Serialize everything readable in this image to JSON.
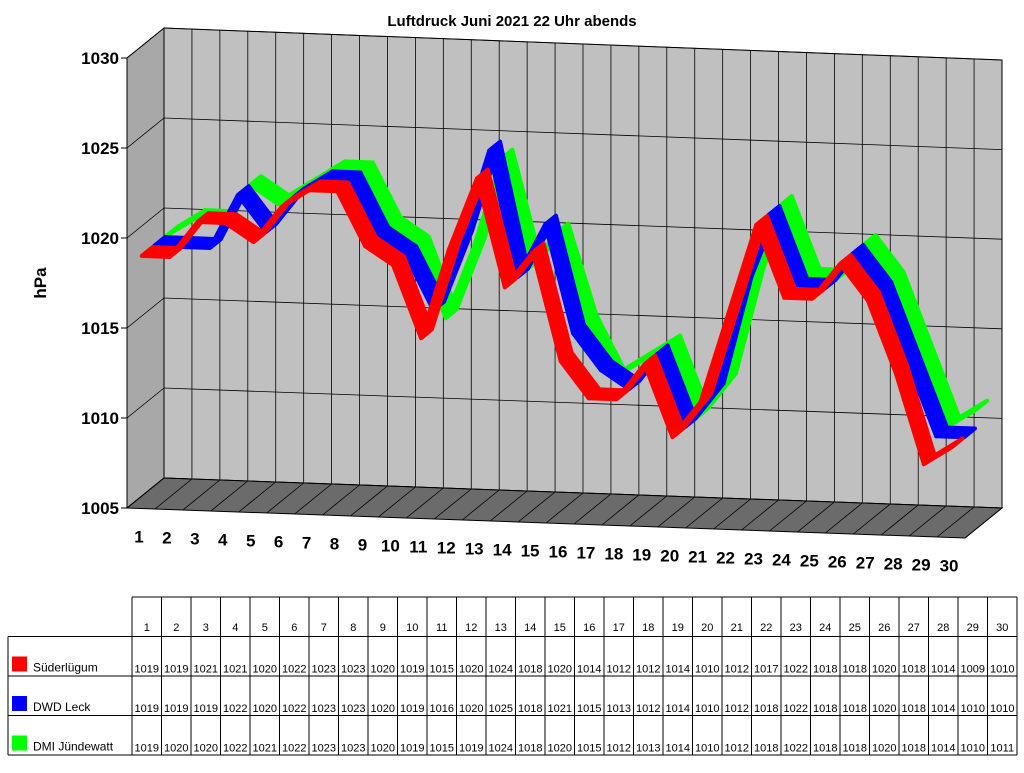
{
  "chart_data": {
    "type": "line",
    "title": "Luftdruck Juni 2021 22 Uhr abends",
    "ylabel": "hPa",
    "xlabel": "",
    "ylim": [
      1005,
      1030
    ],
    "yticks": [
      "1005",
      "1010",
      "1015",
      "1020",
      "1025",
      "1030"
    ],
    "categories": [
      "1",
      "2",
      "3",
      "4",
      "5",
      "6",
      "7",
      "8",
      "9",
      "10",
      "11",
      "12",
      "13",
      "14",
      "15",
      "16",
      "17",
      "18",
      "19",
      "20",
      "21",
      "22",
      "23",
      "24",
      "25",
      "26",
      "27",
      "28",
      "29",
      "30"
    ],
    "grid": true,
    "three_d": true,
    "series": [
      {
        "name": "Süderlügum",
        "color": "#ff0000",
        "values": [
          1019,
          1019,
          1021,
          1021,
          1020,
          1022,
          1023,
          1023,
          1020,
          1019,
          1015,
          1020,
          1024,
          1018,
          1020,
          1014,
          1012,
          1012,
          1014,
          1010,
          1012,
          1017,
          1022,
          1018,
          1018,
          1020,
          1018,
          1014,
          1009,
          1010
        ],
        "table": [
          "1019",
          "1019",
          "1021",
          "1021",
          "1020",
          "1022",
          "1023",
          "1023",
          "1020",
          "1019",
          "1015",
          "1020",
          "1024",
          "1018",
          "1020",
          "1014",
          "1012",
          "1012",
          "1014",
          "1010",
          "1012",
          "1017",
          "1022",
          "1018",
          "1018",
          "1020",
          "1018",
          "1014",
          "1009",
          "1010"
        ]
      },
      {
        "name": "DWD Leck",
        "color": "#0000ff",
        "values": [
          1019,
          1019,
          1019,
          1022,
          1020,
          1022,
          1023,
          1023,
          1020,
          1019,
          1016,
          1020,
          1025,
          1018,
          1021,
          1015,
          1013,
          1012,
          1014,
          1010,
          1012,
          1018,
          1022,
          1018,
          1018,
          1020,
          1018,
          1014,
          1010,
          1010
        ],
        "table": [
          "1019",
          "1019",
          "1019",
          "1022",
          "1020",
          "1022",
          "1023",
          "1023",
          "1020",
          "1019",
          "1016",
          "1020",
          "1025",
          "1018",
          "1021",
          "1015",
          "1013",
          "1012",
          "1014",
          "1010",
          "1012",
          "1018",
          "1022",
          "1018",
          "1018",
          "1020",
          "1018",
          "1014",
          "1010",
          "1010"
        ]
      },
      {
        "name": "DMI Jündewatt",
        "color": "#00ff00",
        "values": [
          1019,
          1020,
          1020,
          1022,
          1021,
          1022,
          1023,
          1023,
          1020,
          1019,
          1015,
          1019,
          1024,
          1018,
          1020,
          1015,
          1012,
          1013,
          1014,
          1010,
          1012,
          1018,
          1022,
          1018,
          1018,
          1020,
          1018,
          1014,
          1010,
          1011
        ],
        "table": [
          "1019",
          "1020",
          "1020",
          "1022",
          "1021",
          "1022",
          "1023",
          "1023",
          "1020",
          "1019",
          "1015",
          "1019",
          "1024",
          "1018",
          "1020",
          "1015",
          "1012",
          "1013",
          "1014",
          "1010",
          "1012",
          "1018",
          "1022",
          "1018",
          "1018",
          "1020",
          "1018",
          "1014",
          "1010",
          "1011"
        ]
      }
    ]
  }
}
